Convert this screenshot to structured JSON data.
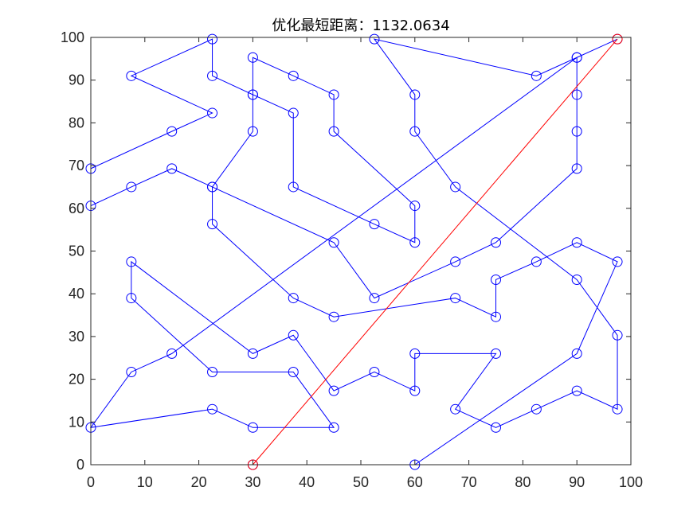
{
  "chart_data": {
    "type": "line",
    "title": "优化最短距离：1132.0634",
    "xlabel": "",
    "ylabel": "",
    "xlim": [
      0,
      100
    ],
    "ylim": [
      0,
      100
    ],
    "x_ticks": [
      0,
      10,
      20,
      30,
      40,
      50,
      60,
      70,
      80,
      90,
      100
    ],
    "y_ticks": [
      0,
      10,
      20,
      30,
      40,
      50,
      60,
      70,
      80,
      90,
      100
    ],
    "grid": false,
    "colors": {
      "route": "#0000ff",
      "closing_edge": "#ff0000",
      "axes": "#262626"
    },
    "marker": "circle",
    "route": [
      [
        30,
        0
      ],
      [
        60,
        0
      ],
      [
        90,
        26
      ],
      [
        97.5,
        47.5
      ],
      [
        90,
        52
      ],
      [
        82.5,
        47.5
      ],
      [
        75,
        43.3
      ],
      [
        75,
        34.6
      ],
      [
        67.5,
        39
      ],
      [
        45,
        34.6
      ],
      [
        37.5,
        39
      ],
      [
        22.5,
        56.3
      ],
      [
        22.5,
        65
      ],
      [
        30,
        78
      ],
      [
        30,
        86.6
      ],
      [
        37.5,
        82.3
      ],
      [
        37.5,
        65
      ],
      [
        52.5,
        56.3
      ],
      [
        60,
        52
      ],
      [
        60,
        60.6
      ],
      [
        45,
        78
      ],
      [
        45,
        86.6
      ],
      [
        37.5,
        91
      ],
      [
        30,
        95.3
      ],
      [
        30,
        86.6
      ],
      [
        22.5,
        91
      ],
      [
        22.5,
        99.6
      ],
      [
        7.5,
        91
      ],
      [
        22.5,
        82.3
      ],
      [
        15,
        78
      ],
      [
        0,
        69.3
      ],
      [
        0,
        60.6
      ],
      [
        7.5,
        65
      ],
      [
        15,
        69.3
      ],
      [
        22.5,
        65
      ],
      [
        45,
        52
      ],
      [
        52.5,
        39
      ],
      [
        67.5,
        47.5
      ],
      [
        75,
        52
      ],
      [
        90,
        69.3
      ],
      [
        90,
        78
      ],
      [
        90,
        86.6
      ],
      [
        90,
        95.3
      ],
      [
        15,
        26
      ],
      [
        7.5,
        21.7
      ],
      [
        0,
        8.7
      ],
      [
        22.5,
        13
      ],
      [
        30,
        8.7
      ],
      [
        45,
        8.7
      ],
      [
        37.5,
        21.7
      ],
      [
        22.5,
        21.7
      ],
      [
        7.5,
        39
      ],
      [
        7.5,
        47.5
      ],
      [
        30,
        26
      ],
      [
        37.5,
        30.3
      ],
      [
        45,
        17.3
      ],
      [
        52.5,
        21.7
      ],
      [
        60,
        17.3
      ],
      [
        60,
        26
      ],
      [
        75,
        26
      ],
      [
        67.5,
        13
      ],
      [
        75,
        8.7
      ],
      [
        82.5,
        13
      ],
      [
        90,
        17.3
      ],
      [
        97.5,
        13
      ],
      [
        97.5,
        30.3
      ],
      [
        90,
        43.3
      ],
      [
        67.5,
        65
      ],
      [
        60,
        78
      ],
      [
        60,
        86.6
      ],
      [
        52.5,
        99.6
      ],
      [
        82.5,
        91
      ],
      [
        90,
        95.3
      ],
      [
        97.5,
        99.6
      ]
    ],
    "closing_edge": [
      [
        97.5,
        99.6
      ],
      [
        30,
        0
      ]
    ],
    "highlighted_points": [
      [
        30,
        0
      ],
      [
        97.5,
        99.6
      ]
    ]
  }
}
